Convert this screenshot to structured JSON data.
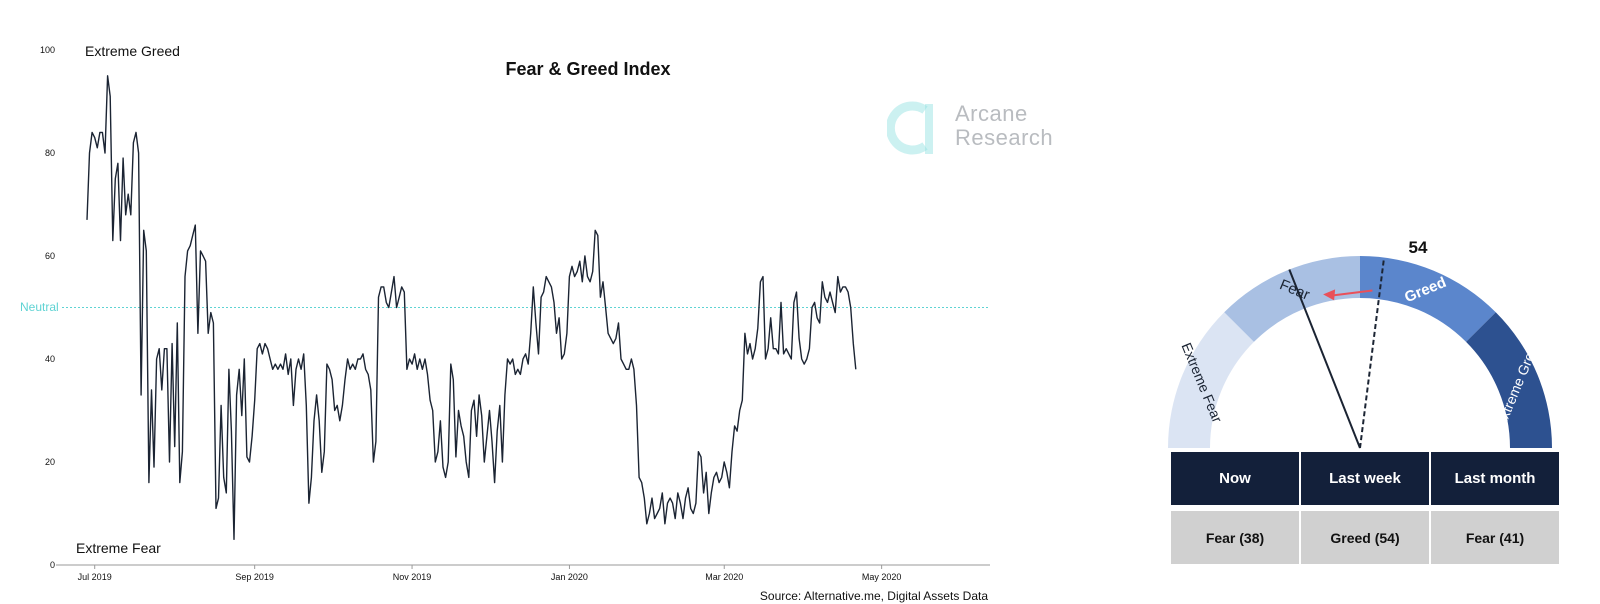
{
  "chart_data": {
    "type": "line",
    "title": "Fear & Greed Index",
    "xlabel": "",
    "ylabel": "",
    "ylim": [
      0,
      100
    ],
    "yticks": [
      0,
      20,
      40,
      60,
      80,
      100
    ],
    "xtick_labels": [
      "Jul 2019",
      "Sep 2019",
      "Nov 2019",
      "Jan 2020",
      "Mar 2020",
      "May 2020"
    ],
    "xtick_positions": [
      3,
      65,
      126,
      187,
      247,
      308
    ],
    "x_range": [
      -12,
      350
    ],
    "annotations": {
      "top": "Extreme Greed",
      "bottom": "Extreme Fear",
      "neutral": "Neutral",
      "neutral_value": 50
    },
    "colors": {
      "line": "#1b2433",
      "neutral": "#5fd3d3"
    },
    "source": "Source: Alternative.me, Digital Assets Data",
    "series": [
      {
        "values": [
          67,
          80,
          84,
          83,
          81,
          84,
          84,
          80,
          95,
          91,
          63,
          75,
          78,
          63,
          79,
          68,
          72,
          68,
          82,
          84,
          80,
          33,
          65,
          61,
          16,
          34,
          19,
          40,
          42,
          34,
          42,
          42,
          20,
          43,
          23,
          47,
          16,
          22,
          56,
          61,
          62,
          64,
          66,
          45,
          61,
          60,
          59,
          45,
          49,
          47,
          11,
          13,
          31,
          17,
          14,
          38,
          26,
          5,
          33,
          38,
          29,
          40,
          21,
          20,
          25,
          32,
          42,
          43,
          41,
          43,
          42,
          40,
          38,
          39,
          38,
          39,
          38,
          41,
          37,
          40,
          31,
          38,
          40,
          38,
          41,
          31,
          12,
          17,
          28,
          33,
          28,
          18,
          22,
          39,
          38,
          36,
          30,
          31,
          28,
          31,
          36,
          40,
          38,
          39,
          38,
          40,
          40,
          41,
          38,
          37,
          34,
          20,
          24,
          52,
          54,
          54,
          51,
          50,
          53,
          56,
          50,
          52,
          54,
          53,
          38,
          40,
          39,
          41,
          38,
          40,
          38,
          40,
          37,
          32,
          30,
          20,
          22,
          28,
          19,
          17,
          20,
          39,
          36,
          21,
          30,
          27,
          25,
          20,
          17,
          30,
          32,
          25,
          33,
          29,
          20,
          25,
          30,
          24,
          16,
          26,
          31,
          20,
          33,
          40,
          39,
          40,
          37,
          38,
          37,
          40,
          41,
          39,
          45,
          54,
          47,
          41,
          52,
          53,
          56,
          55,
          54,
          51,
          45,
          48,
          40,
          41,
          45,
          56,
          58,
          56,
          57,
          59,
          55,
          60,
          56,
          55,
          57,
          65,
          64,
          52,
          55,
          50,
          45,
          44,
          43,
          44,
          47,
          40,
          39,
          38,
          38,
          40,
          38,
          31,
          17,
          16,
          13,
          8,
          10,
          13,
          9,
          10,
          11,
          14,
          8,
          12,
          13,
          12,
          9,
          14,
          12,
          9,
          13,
          15,
          11,
          10,
          12,
          22,
          21,
          14,
          18,
          10,
          14,
          17,
          18,
          16,
          17,
          20,
          18,
          15,
          22,
          27,
          26,
          30,
          32,
          45,
          41,
          43,
          40,
          42,
          46,
          55,
          56,
          40,
          42,
          48,
          42,
          42,
          41,
          51,
          41,
          42,
          41,
          40,
          51,
          53,
          44,
          40,
          39,
          40,
          42,
          50,
          51,
          48,
          47,
          55,
          52,
          51,
          53,
          51,
          49,
          56,
          53,
          54,
          54,
          53,
          50,
          43,
          38
        ]
      }
    ]
  },
  "watermark": {
    "line1": "Arcane",
    "line2": "Research",
    "color": "#8fe0e0"
  },
  "gauge": {
    "value_label": "54",
    "now_value": 38,
    "last_week_value": 54,
    "segments": [
      {
        "label": "Extreme Fear",
        "from": 0,
        "to": 25,
        "color": "#dbe4f3",
        "text_color": "#1b2433"
      },
      {
        "label": "Fear",
        "from": 25,
        "to": 50,
        "color": "#a9c0e3",
        "text_color": "#1b2433"
      },
      {
        "label": "Greed",
        "from": 50,
        "to": 75,
        "color": "#5b86cc",
        "text_color": "#ffffff"
      },
      {
        "label": "Extreme Greed",
        "from": 75,
        "to": 100,
        "color": "#2d5190",
        "text_color": "#ffffff"
      }
    ],
    "colors": {
      "needle": "#1b2433",
      "arrow": "#e9505a"
    }
  },
  "table": {
    "headers": [
      "Now",
      "Last week",
      "Last month"
    ],
    "values": [
      "Fear (38)",
      "Greed (54)",
      "Fear (41)"
    ]
  }
}
